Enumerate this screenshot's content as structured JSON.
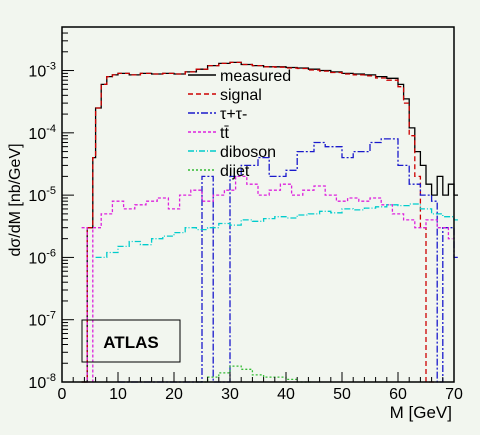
{
  "chart_data": {
    "type": "line",
    "xlabel": "M [GeV]",
    "ylabel": "dσ/dM [nb/GeV]",
    "xlim": [
      0,
      70
    ],
    "ylim": [
      1e-08,
      0.005
    ],
    "yscale": "log",
    "x_ticks": [
      "0",
      "10",
      "20",
      "30",
      "40",
      "50",
      "60",
      "70"
    ],
    "y_ticks": [
      {
        "base": "10",
        "exp": "-8",
        "value": 1e-08
      },
      {
        "base": "10",
        "exp": "-7",
        "value": 1e-07
      },
      {
        "base": "10",
        "exp": "-6",
        "value": 1e-06
      },
      {
        "base": "10",
        "exp": "-5",
        "value": 1e-05
      },
      {
        "base": "10",
        "exp": "-4",
        "value": 0.0001
      },
      {
        "base": "10",
        "exp": "-3",
        "value": 0.001
      }
    ],
    "annotation": "ATLAS",
    "legend_position": "top-right",
    "series": [
      {
        "name": "measured",
        "color": "#000000",
        "dash": "solid",
        "x": [
          3.5,
          4.5,
          5.5,
          6,
          7,
          8,
          9,
          10,
          12,
          14,
          16,
          18,
          20,
          22,
          24,
          26,
          28,
          30,
          32,
          34,
          36,
          38,
          40,
          42,
          44,
          46,
          48,
          50,
          52,
          54,
          56,
          58,
          60,
          61,
          62,
          63,
          64,
          65,
          66,
          67,
          68,
          69,
          70
        ],
        "y": [
          1e-08,
          3e-06,
          4e-05,
          0.00025,
          0.0006,
          0.0008,
          0.00085,
          0.0009,
          0.00085,
          0.0009,
          0.00088,
          0.0009,
          0.00088,
          0.00095,
          0.00105,
          0.0012,
          0.0013,
          0.00135,
          0.00125,
          0.0012,
          0.00115,
          0.00115,
          0.00112,
          0.0011,
          0.00105,
          0.001,
          0.00095,
          0.0009,
          0.00088,
          0.00085,
          0.0008,
          0.00075,
          0.0006,
          0.00035,
          0.00012,
          5e-05,
          3e-05,
          1.5e-05,
          1e-05,
          2e-05,
          1e-05,
          1.5e-05,
          1e-05
        ]
      },
      {
        "name": "signal",
        "color": "#cc0000",
        "dash": "5,3",
        "x": [
          3.5,
          4.5,
          5.5,
          6,
          7,
          8,
          9,
          10,
          12,
          14,
          16,
          18,
          20,
          22,
          24,
          26,
          28,
          30,
          32,
          34,
          36,
          38,
          40,
          42,
          44,
          46,
          48,
          50,
          52,
          54,
          56,
          58,
          60,
          61,
          62,
          63,
          64,
          65,
          66
        ],
        "y": [
          1e-08,
          3e-06,
          4e-05,
          0.00025,
          0.0006,
          0.0008,
          0.00085,
          0.0009,
          0.00085,
          0.0009,
          0.00088,
          0.0009,
          0.00088,
          0.00095,
          0.00105,
          0.0012,
          0.0013,
          0.00135,
          0.00125,
          0.0012,
          0.00115,
          0.00113,
          0.0011,
          0.00108,
          0.00102,
          0.00098,
          0.00093,
          0.00088,
          0.00085,
          0.00082,
          0.00076,
          0.0007,
          0.00055,
          0.0003,
          9e-05,
          2e-05,
          3e-06,
          1e-08,
          1e-08
        ]
      },
      {
        "name": "τ+τ-",
        "color": "#1a1acc",
        "dash": "7,2,2,2",
        "x": [
          10,
          15,
          20,
          25,
          27,
          30,
          32,
          35,
          37,
          40,
          42,
          45,
          47,
          50,
          52,
          55,
          57,
          60,
          62,
          64,
          66,
          67,
          68,
          70
        ],
        "y": [
          1e-08,
          1e-08,
          1e-08,
          2e-05,
          1e-08,
          2e-05,
          3e-05,
          4e-05,
          2e-05,
          2.5e-05,
          5e-05,
          7e-05,
          6e-05,
          4e-05,
          5e-05,
          7e-05,
          8e-05,
          3e-05,
          1.5e-05,
          1e-05,
          8e-06,
          1e-08,
          3e-06,
          1e-06
        ]
      },
      {
        "name": "tt̄",
        "color": "#dd22dd",
        "dash": "3,2",
        "x": [
          3.5,
          4.5,
          5.5,
          7,
          9,
          11,
          13,
          15,
          17,
          19,
          21,
          23,
          25,
          27,
          29,
          31,
          33,
          35,
          37,
          39,
          41,
          43,
          45,
          47,
          49,
          51,
          53,
          55,
          57,
          59,
          61,
          63,
          65,
          67,
          69
        ],
        "y": [
          3e-06,
          1e-08,
          3e-06,
          5e-06,
          8e-06,
          6e-06,
          7e-06,
          8e-06,
          9e-06,
          6e-06,
          1e-05,
          1.2e-05,
          8e-06,
          1e-05,
          1.2e-05,
          2e-05,
          1.5e-05,
          1e-05,
          1.2e-05,
          1.5e-05,
          1e-05,
          1.2e-05,
          1.4e-05,
          1e-05,
          8e-06,
          9e-06,
          8e-06,
          9e-06,
          7e-06,
          5e-06,
          4e-06,
          3e-06,
          4e-06,
          3e-06,
          2e-06
        ]
      },
      {
        "name": "diboson",
        "color": "#00cccc",
        "dash": "6,2,1,2",
        "x": [
          6,
          8,
          10,
          12,
          14,
          16,
          18,
          20,
          22,
          24,
          26,
          28,
          30,
          32,
          34,
          36,
          38,
          40,
          42,
          44,
          46,
          48,
          50,
          52,
          54,
          56,
          58,
          60,
          62,
          64,
          66,
          68,
          70
        ],
        "y": [
          1e-06,
          1.2e-06,
          1.5e-06,
          1.8e-06,
          1.6e-06,
          2e-06,
          2.2e-06,
          2.5e-06,
          3e-06,
          2.8e-06,
          3e-06,
          3.5e-06,
          3.3e-06,
          4e-06,
          3.8e-06,
          4.2e-06,
          4.5e-06,
          4.3e-06,
          4.8e-06,
          5e-06,
          5.5e-06,
          5.2e-06,
          6e-06,
          5.8e-06,
          6.2e-06,
          6.5e-06,
          7e-06,
          6.8e-06,
          7.2e-06,
          6e-06,
          5e-06,
          4.5e-06,
          4e-06
        ]
      },
      {
        "name": "dijet",
        "color": "#33bb33",
        "dash": "2,2",
        "x": [
          24,
          26,
          28,
          30,
          32,
          34,
          36,
          38,
          40,
          42,
          44
        ],
        "y": [
          1e-08,
          1.2e-08,
          1.4e-08,
          1.8e-08,
          1.6e-08,
          1.3e-08,
          1.2e-08,
          1.2e-08,
          1.1e-08,
          1e-08,
          1e-08
        ]
      }
    ]
  }
}
